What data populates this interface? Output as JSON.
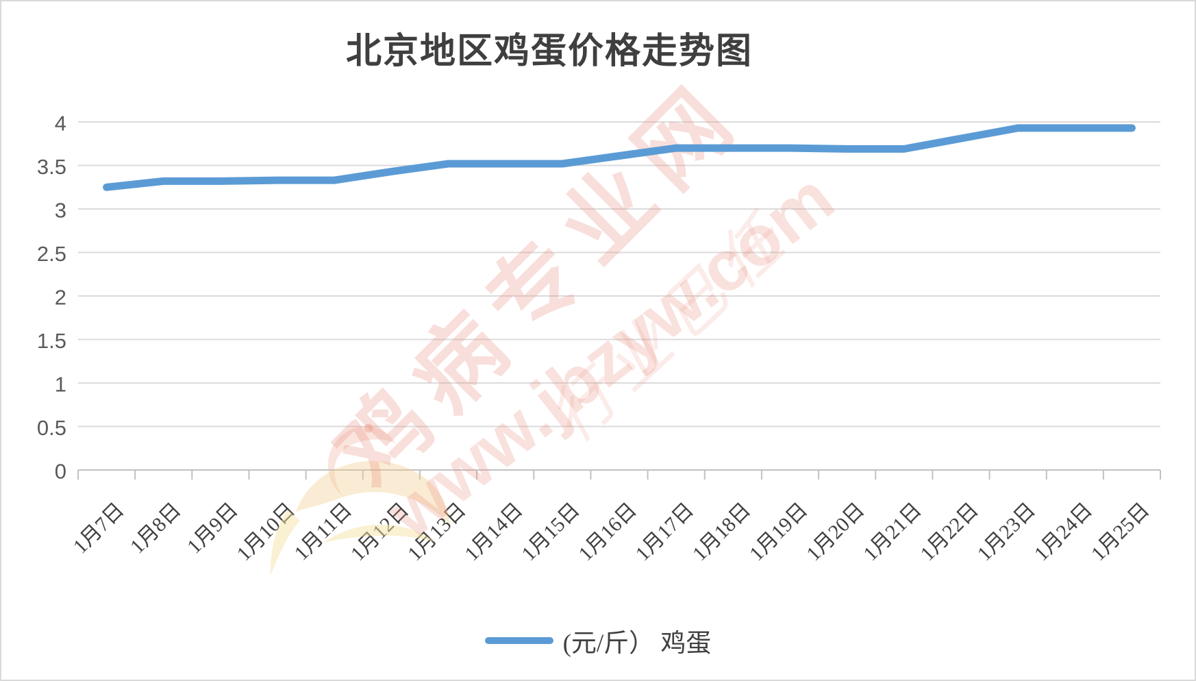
{
  "frame": {
    "title": "北京地区鸡蛋价格走势图"
  },
  "chart_data": {
    "type": "line",
    "title": "北京地区鸡蛋价格走势图",
    "categories": [
      "1月7日",
      "1月8日",
      "1月9日",
      "1月10日",
      "1月11日",
      "1月12日",
      "1月13日",
      "1月14日",
      "1月15日",
      "1月16日",
      "1月17日",
      "1月18日",
      "1月19日",
      "1月20日",
      "1月21日",
      "1月22日",
      "1月23日",
      "1月24日",
      "1月25日"
    ],
    "series": [
      {
        "name": "(元/斤） 鸡蛋",
        "values": [
          3.25,
          3.32,
          3.32,
          3.33,
          3.33,
          3.43,
          3.52,
          3.52,
          3.52,
          3.61,
          3.7,
          3.7,
          3.7,
          3.69,
          3.69,
          3.81,
          3.93,
          3.93,
          3.93
        ]
      }
    ],
    "xlabel": "",
    "ylabel": "",
    "ylim": [
      0,
      4
    ],
    "yticks": [
      0,
      0.5,
      1,
      1.5,
      2,
      2.5,
      3,
      3.5,
      4
    ],
    "grid": "horizontal",
    "legend_position": "bottom"
  },
  "legend": {
    "label": "(元/斤） 鸡蛋"
  },
  "watermark": {
    "main": "鸡病专业网",
    "url": "www.jbzyw.com",
    "slogan": "行业己任"
  },
  "colors": {
    "accent": "#5B9BD5",
    "gridline": "#dbdbdb",
    "axis": "#c1c1c1",
    "title_text": "#3f3f3f",
    "ytick_text": "#595959",
    "xtick_text": "#404040",
    "watermark": "#E98C7D"
  }
}
